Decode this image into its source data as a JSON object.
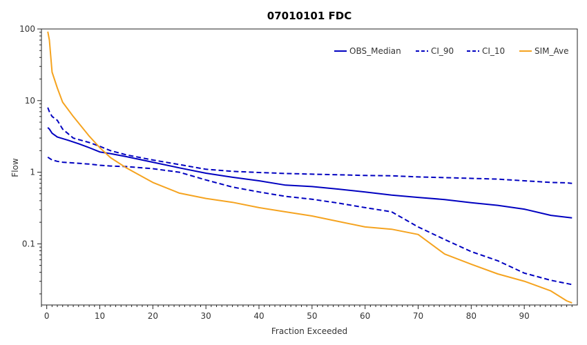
{
  "chart_data": {
    "type": "line",
    "title": "07010101 FDC",
    "xlabel": "Fraction Exceeded",
    "ylabel": "Flow",
    "xlim": [
      -1,
      100
    ],
    "ylim": [
      0.014,
      100
    ],
    "y_scale": "log",
    "x_ticks": [
      0,
      10,
      20,
      30,
      40,
      50,
      60,
      70,
      80,
      90
    ],
    "y_ticks": [
      {
        "value": 0.1,
        "label": "0.1"
      },
      {
        "value": 1,
        "label": "1"
      },
      {
        "value": 10,
        "label": "10"
      },
      {
        "value": 100,
        "label": "100"
      }
    ],
    "grid": false,
    "legend_position": "top-right",
    "series": [
      {
        "name": "OBS_Median",
        "color": "#0000c0",
        "dash": "solid",
        "x": [
          0.2,
          0.5,
          1,
          2,
          4,
          6,
          8,
          10,
          12,
          15,
          20,
          25,
          30,
          35,
          40,
          45,
          50,
          55,
          60,
          65,
          70,
          75,
          80,
          85,
          90,
          95,
          98,
          99
        ],
        "y": [
          4.2,
          4.0,
          3.5,
          3.1,
          2.8,
          2.5,
          2.2,
          1.92,
          1.82,
          1.65,
          1.38,
          1.15,
          0.97,
          0.85,
          0.76,
          0.66,
          0.63,
          0.58,
          0.53,
          0.48,
          0.445,
          0.415,
          0.375,
          0.345,
          0.305,
          0.25,
          0.235,
          0.23
        ]
      },
      {
        "name": "CI_90",
        "color": "#0000c0",
        "dash": "dashed",
        "x": [
          0.2,
          0.5,
          1,
          2,
          3,
          5,
          8,
          10,
          12,
          15,
          20,
          25,
          30,
          35,
          40,
          45,
          50,
          55,
          60,
          65,
          70,
          75,
          80,
          85,
          90,
          95,
          98,
          99
        ],
        "y": [
          8.0,
          7.0,
          6.0,
          5.3,
          4.0,
          3.0,
          2.6,
          2.3,
          2.0,
          1.75,
          1.48,
          1.28,
          1.1,
          1.03,
          0.99,
          0.96,
          0.94,
          0.92,
          0.9,
          0.89,
          0.86,
          0.84,
          0.82,
          0.8,
          0.76,
          0.72,
          0.71,
          0.7
        ]
      },
      {
        "name": "CI_10",
        "color": "#0000c0",
        "dash": "dashed",
        "x": [
          0.2,
          0.5,
          1,
          2,
          3,
          5,
          8,
          10,
          12,
          15,
          20,
          25,
          30,
          35,
          40,
          45,
          50,
          55,
          60,
          65,
          70,
          75,
          80,
          85,
          90,
          95,
          98,
          99
        ],
        "y": [
          1.62,
          1.57,
          1.48,
          1.42,
          1.38,
          1.35,
          1.3,
          1.25,
          1.22,
          1.2,
          1.12,
          1.0,
          0.78,
          0.62,
          0.53,
          0.46,
          0.42,
          0.37,
          0.32,
          0.28,
          0.172,
          0.115,
          0.078,
          0.058,
          0.039,
          0.031,
          0.028,
          0.027
        ]
      },
      {
        "name": "SIM_Ave",
        "color": "#f5a31f",
        "dash": "solid",
        "x": [
          0.2,
          0.5,
          1,
          2,
          3,
          5,
          8,
          10,
          12,
          15,
          20,
          25,
          30,
          35,
          40,
          45,
          50,
          55,
          60,
          65,
          70,
          75,
          80,
          85,
          90,
          95,
          98,
          99
        ],
        "y": [
          92,
          70,
          25,
          15,
          9.5,
          6.0,
          3.2,
          2.2,
          1.6,
          1.15,
          0.72,
          0.51,
          0.43,
          0.38,
          0.32,
          0.28,
          0.245,
          0.205,
          0.172,
          0.16,
          0.135,
          0.072,
          0.052,
          0.038,
          0.03,
          0.022,
          0.016,
          0.015
        ]
      }
    ]
  }
}
